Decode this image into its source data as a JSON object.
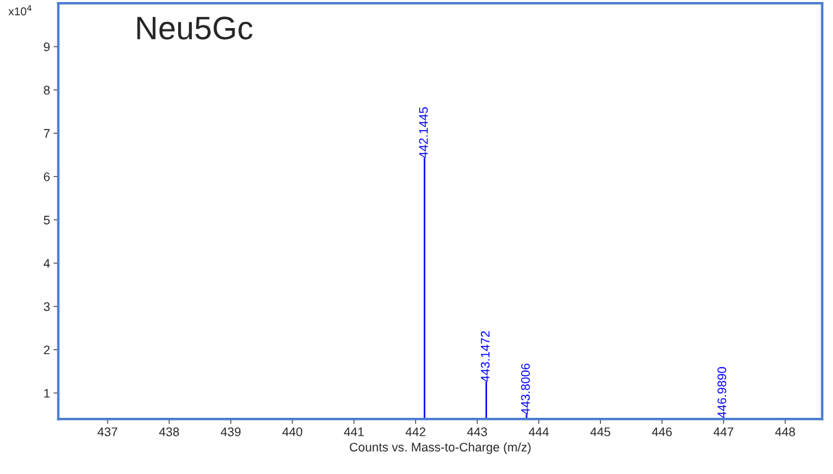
{
  "chart_data": {
    "type": "bar",
    "title": "Neu5Gc",
    "xlabel": "Counts vs. Mass-to-Charge (m/z)",
    "annotations": [
      "x10$^{4}$",
      {
        "text": "442.1445",
        "x": 442.1445,
        "y": 6.42
      },
      {
        "text": "443.1472",
        "x": 443.1472,
        "y": 1.25
      },
      {
        "text": "443.8006",
        "x": 443.8006,
        "y": 0.5
      },
      {
        "text": "446.9890",
        "x": 446.989,
        "y": 0.42
      }
    ],
    "x": [
      442.1445,
      443.1472,
      443.8006,
      446.989
    ],
    "values": [
      6.42,
      1.25,
      0.5,
      0.42
    ],
    "color": "#0000ff",
    "xlim": [
      436.2,
      448.6
    ],
    "xticks": [
      437,
      438,
      439,
      440,
      441,
      442,
      443,
      444,
      445,
      446,
      447,
      448
    ],
    "ylim": [
      0.4,
      10
    ],
    "yticks": [
      1,
      2,
      3,
      4,
      5,
      6,
      7,
      8,
      9
    ],
    "grid": false
  }
}
